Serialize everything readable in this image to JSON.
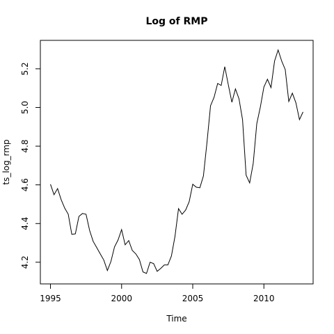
{
  "chart_data": {
    "type": "line",
    "title": "Log of RMP",
    "xlabel": "Time",
    "ylabel": "ts_log_rmp",
    "x": [
      1995,
      1995.25,
      1995.5,
      1995.75,
      1996,
      1996.25,
      1996.5,
      1996.75,
      1997,
      1997.25,
      1997.5,
      1997.75,
      1998,
      1998.25,
      1998.5,
      1998.75,
      1999,
      1999.25,
      1999.5,
      1999.75,
      2000,
      2000.25,
      2000.5,
      2000.75,
      2001,
      2001.25,
      2001.5,
      2001.75,
      2002,
      2002.25,
      2002.5,
      2002.75,
      2003,
      2003.25,
      2003.5,
      2003.75,
      2004,
      2004.25,
      2004.5,
      2004.75,
      2005,
      2005.25,
      2005.5,
      2005.75,
      2006,
      2006.25,
      2006.5,
      2006.75,
      2007,
      2007.25,
      2007.5,
      2007.75,
      2008,
      2008.25,
      2008.5,
      2008.75,
      2009,
      2009.25,
      2009.5,
      2009.75,
      2010,
      2010.25,
      2010.5,
      2010.75,
      2011,
      2011.25,
      2011.5,
      2011.75,
      2012,
      2012.25,
      2012.5,
      2012.75
    ],
    "series": [
      {
        "name": "ts_log_rmp",
        "color": "#000000",
        "values": [
          4.603,
          4.549,
          4.581,
          4.524,
          4.48,
          4.448,
          4.344,
          4.347,
          4.437,
          4.452,
          4.448,
          4.365,
          4.308,
          4.276,
          4.243,
          4.211,
          4.157,
          4.204,
          4.279,
          4.315,
          4.369,
          4.29,
          4.312,
          4.261,
          4.243,
          4.214,
          4.15,
          4.142,
          4.2,
          4.193,
          4.153,
          4.168,
          4.186,
          4.186,
          4.232,
          4.333,
          4.477,
          4.448,
          4.47,
          4.513,
          4.603,
          4.588,
          4.585,
          4.646,
          4.819,
          5.009,
          5.053,
          5.124,
          5.114,
          5.211,
          5.117,
          5.027,
          5.096,
          5.045,
          4.937,
          4.65,
          4.61,
          4.711,
          4.916,
          5.002,
          5.106,
          5.146,
          5.103,
          5.24,
          5.297,
          5.24,
          5.196,
          5.031,
          5.074,
          5.024,
          4.937,
          4.977
        ]
      }
    ],
    "xlim": [
      1994.29,
      2013.46
    ],
    "ylim": [
      4.088,
      5.347
    ],
    "xticks": [
      1995,
      2000,
      2005,
      2010
    ],
    "yticks": [
      4.2,
      4.4,
      4.6,
      4.8,
      {
        "value": 5,
        "label": "5.0"
      },
      5.2
    ]
  }
}
